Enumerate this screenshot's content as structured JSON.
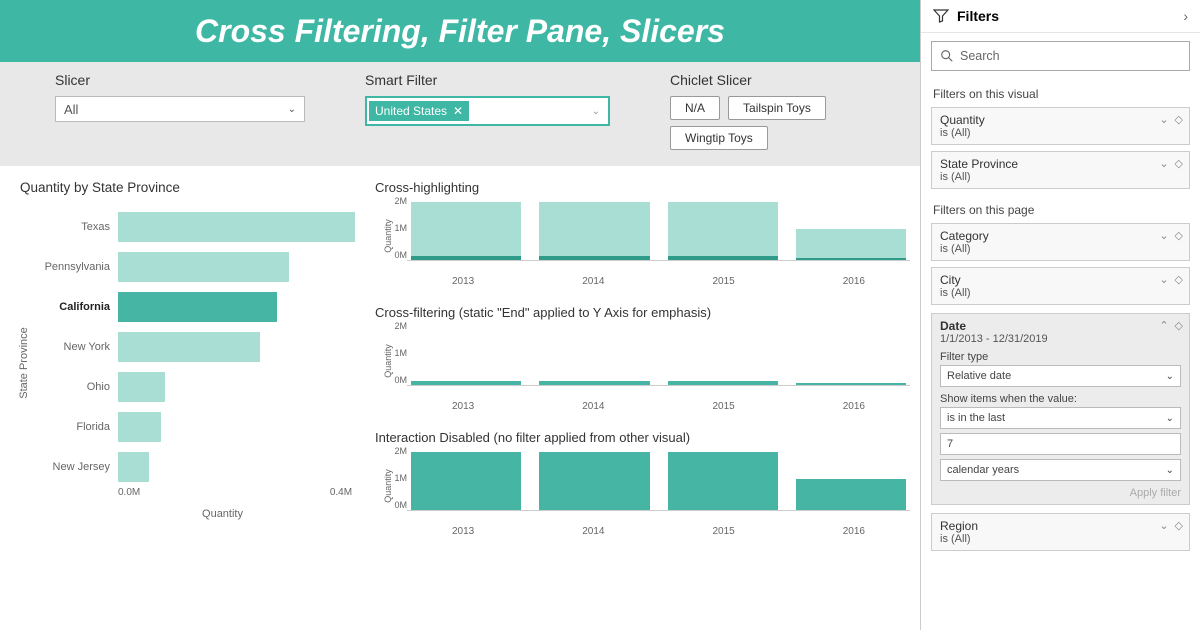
{
  "title": "Cross Filtering, Filter Pane, Slicers",
  "colors": {
    "accent": "#3eb8a5",
    "bar_light": "#a9ded5",
    "bar_dark": "#47b5a3",
    "controls_bg": "#e8e8e8",
    "text": "#333333"
  },
  "slicer": {
    "label": "Slicer",
    "value": "All"
  },
  "smart_filter": {
    "label": "Smart Filter",
    "chip": "United States"
  },
  "chiclet": {
    "label": "Chiclet Slicer",
    "items": [
      "N/A",
      "Tailspin Toys",
      "Wingtip Toys"
    ]
  },
  "hbar": {
    "title": "Quantity by State Province",
    "ylabel": "State Province",
    "xlabel": "Quantity",
    "xticks": [
      "0.0M",
      "0.4M"
    ],
    "xmax": 0.5,
    "tick_gap_pct": 80,
    "bar_color": "#a9ded5",
    "highlight_color": "#47b5a3",
    "rows": [
      {
        "label": "Texas",
        "value": 0.5,
        "hl": false
      },
      {
        "label": "Pennsylvania",
        "value": 0.36,
        "hl": false
      },
      {
        "label": "California",
        "value": 0.335,
        "hl": true
      },
      {
        "label": "New York",
        "value": 0.3,
        "hl": false
      },
      {
        "label": "Ohio",
        "value": 0.1,
        "hl": false
      },
      {
        "label": "Florida",
        "value": 0.09,
        "hl": false
      },
      {
        "label": "New Jersey",
        "value": 0.065,
        "hl": false
      }
    ]
  },
  "mini_charts": {
    "categories": [
      "2013",
      "2014",
      "2015",
      "2016"
    ],
    "ymax": 2.2,
    "yticks": [
      "2M",
      "1M",
      "0M"
    ],
    "ylabel": "Quantity",
    "charts": [
      {
        "title": "Cross-highlighting",
        "bar_color": "#a9ded5",
        "overlay_color": "#2f9c8a",
        "values": [
          2.15,
          2.15,
          2.15,
          1.15
        ],
        "overlay": [
          0.14,
          0.14,
          0.14,
          0.08
        ]
      },
      {
        "title": "Cross-filtering (static \"End\" applied to Y Axis for emphasis)",
        "bar_color": "#47b5a3",
        "values": [
          0.14,
          0.14,
          0.14,
          0.08
        ]
      },
      {
        "title": "Interaction Disabled (no filter applied from other visual)",
        "bar_color": "#47b5a3",
        "values": [
          2.15,
          2.15,
          2.15,
          1.15
        ]
      }
    ]
  },
  "filter_pane": {
    "title": "Filters",
    "search_placeholder": "Search",
    "sections": [
      {
        "label": "Filters on this visual",
        "cards": [
          {
            "title": "Quantity",
            "sub": "is (All)"
          },
          {
            "title": "State Province",
            "sub": "is (All)"
          }
        ]
      },
      {
        "label": "Filters on this page",
        "cards": [
          {
            "title": "Category",
            "sub": "is (All)"
          },
          {
            "title": "City",
            "sub": "is (All)"
          }
        ]
      }
    ],
    "date_card": {
      "title": "Date",
      "sub": "1/1/2013 - 12/31/2019",
      "filter_type_label": "Filter type",
      "filter_type": "Relative date",
      "show_label": "Show items when the value:",
      "cond": "is in the last",
      "num": "7",
      "unit": "calendar years",
      "apply": "Apply filter"
    },
    "region_card": {
      "title": "Region",
      "sub": "is (All)"
    }
  }
}
